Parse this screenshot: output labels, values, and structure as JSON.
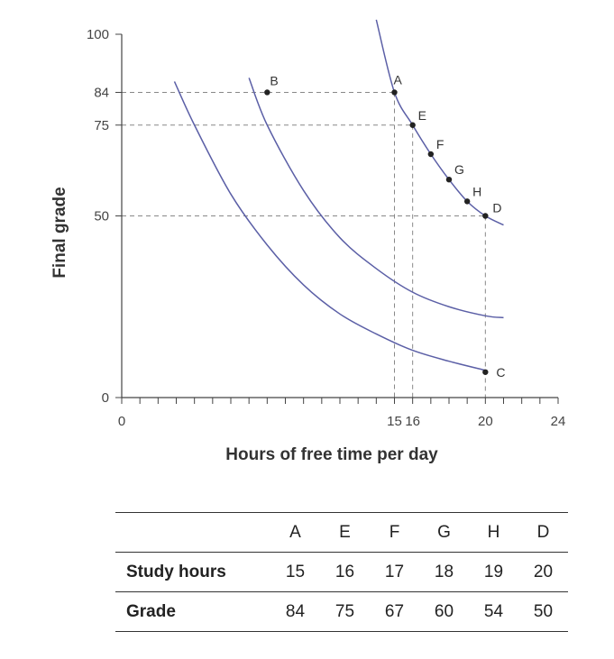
{
  "chart_data": {
    "type": "line",
    "xlabel": "Hours of free time per day",
    "ylabel": "Final grade",
    "xlim": [
      0,
      24
    ],
    "ylim": [
      0,
      100
    ],
    "x_ticks": [
      "0",
      "15",
      "16",
      "20",
      "24"
    ],
    "y_ticks": [
      "0",
      "50",
      "75",
      "84",
      "100"
    ],
    "grid": false,
    "series": [
      {
        "values": [
          [
            2.9,
            87
          ],
          [
            4,
            75
          ],
          [
            6,
            56
          ],
          [
            8,
            42
          ],
          [
            10,
            31
          ],
          [
            12,
            23
          ],
          [
            14,
            17.5
          ],
          [
            16,
            13
          ],
          [
            18,
            10
          ],
          [
            20,
            7.5
          ]
        ]
      },
      {
        "values": [
          [
            7,
            88
          ],
          [
            8,
            75
          ],
          [
            10,
            57
          ],
          [
            12,
            44
          ],
          [
            14,
            35.5
          ],
          [
            16,
            29
          ],
          [
            18,
            25
          ],
          [
            20,
            22.5
          ],
          [
            21,
            22
          ]
        ]
      },
      {
        "values": [
          [
            14,
            104
          ],
          [
            15,
            84
          ],
          [
            16,
            75
          ],
          [
            17,
            67
          ],
          [
            18,
            60
          ],
          [
            19,
            54
          ],
          [
            20,
            50
          ],
          [
            21,
            47.5
          ]
        ]
      }
    ],
    "points": [
      {
        "label": "B",
        "x": 8,
        "y": 84
      },
      {
        "label": "A",
        "x": 15,
        "y": 84
      },
      {
        "label": "E",
        "x": 16,
        "y": 75
      },
      {
        "label": "F",
        "x": 17,
        "y": 67
      },
      {
        "label": "G",
        "x": 18,
        "y": 60
      },
      {
        "label": "H",
        "x": 19,
        "y": 54
      },
      {
        "label": "D",
        "x": 20,
        "y": 50
      },
      {
        "label": "C",
        "x": 20,
        "y": 7
      }
    ],
    "guide_lines": [
      {
        "x": 15,
        "y": 84
      },
      {
        "x": 16,
        "y": 75
      },
      {
        "x": 20,
        "y": 50
      }
    ],
    "colors": {
      "curve": "#5b5fa6",
      "guide": "#888888",
      "axis": "#444444",
      "point": "#222222"
    }
  },
  "table": {
    "columns": [
      "A",
      "E",
      "F",
      "G",
      "H",
      "D"
    ],
    "rows": [
      {
        "label": "Study hours",
        "values": [
          "15",
          "16",
          "17",
          "18",
          "19",
          "20"
        ]
      },
      {
        "label": "Grade",
        "values": [
          "84",
          "75",
          "67",
          "60",
          "54",
          "50"
        ]
      }
    ]
  }
}
